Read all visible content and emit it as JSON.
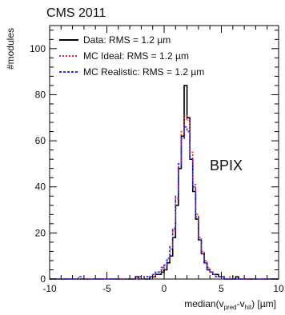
{
  "chart_data": {
    "type": "histogram",
    "title": "CMS 2011",
    "annotation": "BPIX",
    "xlabel": "median(v_pred - v_hit) [µm]",
    "ylabel": "#modules",
    "xlim": [
      -10,
      10
    ],
    "ylim": [
      0,
      110
    ],
    "xticks": [
      -10,
      -5,
      0,
      5,
      10
    ],
    "yticks": [
      0,
      20,
      40,
      60,
      80,
      100
    ],
    "bin_width": 0.25,
    "legend_position": "top-left",
    "series": [
      {
        "name": "Data: RMS = 1.2 µm",
        "color": "#000000",
        "dash": "solid",
        "x_start": -10,
        "values": [
          0,
          0,
          0,
          0,
          0,
          0,
          0,
          0,
          0,
          0,
          0,
          0,
          0,
          0,
          0,
          0,
          0,
          0,
          0,
          0,
          0,
          0,
          0,
          0,
          0,
          0,
          0,
          0,
          0,
          0,
          1,
          0,
          0,
          0,
          0,
          1,
          1,
          2,
          2,
          3,
          4,
          7,
          10,
          18,
          32,
          48,
          62,
          84,
          70,
          52,
          38,
          26,
          17,
          11,
          7,
          4,
          3,
          2,
          2,
          1,
          1,
          0,
          0,
          0,
          0,
          1,
          0,
          0,
          0,
          0,
          0,
          0,
          0,
          0,
          0,
          0,
          0,
          0,
          0,
          0
        ]
      },
      {
        "name": "MC Ideal: RMS = 1.2 µm",
        "color": "#e8232a",
        "dash": "2,2",
        "x_start": -10,
        "values": [
          0,
          0,
          0,
          0,
          0,
          0,
          0,
          0,
          0,
          0,
          0,
          0,
          0,
          0,
          0,
          0,
          0,
          0,
          0,
          0,
          0,
          0,
          0,
          0,
          0,
          0,
          0,
          0,
          0,
          0,
          0,
          0,
          0,
          1,
          1,
          1,
          1,
          3,
          3,
          4,
          6,
          8,
          13,
          21,
          35,
          50,
          64,
          71,
          69,
          55,
          41,
          28,
          18,
          12,
          8,
          5,
          3,
          2,
          1,
          1,
          1,
          0,
          0,
          1,
          0,
          0,
          0,
          0,
          0,
          0,
          0,
          0,
          0,
          0,
          0,
          0,
          0,
          0,
          0,
          0
        ]
      },
      {
        "name": "MC Realistic: RMS = 1.2 µm",
        "color": "#2a2ee8",
        "dash": "3,2",
        "x_start": -10,
        "values": [
          0,
          0,
          0,
          0,
          0,
          0,
          0,
          0,
          0,
          0,
          1,
          0,
          0,
          0,
          0,
          0,
          0,
          0,
          0,
          0,
          0,
          0,
          0,
          0,
          0,
          0,
          0,
          0,
          0,
          0,
          0,
          1,
          0,
          1,
          1,
          1,
          2,
          3,
          3,
          5,
          6,
          9,
          14,
          22,
          36,
          50,
          61,
          66,
          64,
          52,
          40,
          27,
          17,
          11,
          7,
          4,
          3,
          2,
          1,
          1,
          1,
          0,
          0,
          0,
          0,
          0,
          0,
          0,
          0,
          0,
          0,
          0,
          0,
          0,
          0,
          0,
          0,
          0,
          0,
          0
        ]
      }
    ]
  }
}
